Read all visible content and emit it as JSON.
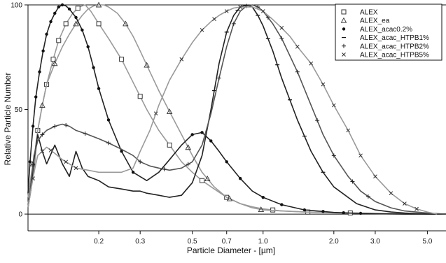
{
  "chart_data": {
    "type": "line",
    "title": "",
    "xlabel": "Particle Diameter - [µm]",
    "ylabel": "Relative Particle Number",
    "x_scale": "log",
    "xlim": [
      0.1,
      6.0
    ],
    "ylim": [
      -8,
      100
    ],
    "grid": false,
    "legend_position": "top-right",
    "x_ticks": [
      {
        "value": 0.2,
        "label": "0.2"
      },
      {
        "value": 0.3,
        "label": "0.3"
      },
      {
        "value": 0.5,
        "label": "0.5"
      },
      {
        "value": 0.7,
        "label": "0.7"
      },
      {
        "value": 1.0,
        "label": "1.0"
      },
      {
        "value": 2.0,
        "label": "2.0"
      },
      {
        "value": 3.0,
        "label": "3.0"
      },
      {
        "value": 5.0,
        "label": "5.0"
      }
    ],
    "y_ticks": [
      {
        "value": 0,
        "label": "0"
      },
      {
        "value": 50,
        "label": "50"
      },
      {
        "value": 100,
        "label": "100"
      }
    ],
    "series": [
      {
        "name": "ALEX",
        "marker": "square",
        "color": "#9a9a9a",
        "x": [
          0.1,
          0.103,
          0.107,
          0.11,
          0.115,
          0.12,
          0.128,
          0.135,
          0.145,
          0.155,
          0.165,
          0.175,
          0.185,
          0.2,
          0.22,
          0.25,
          0.28,
          0.32,
          0.36,
          0.4,
          0.45,
          0.5,
          0.55,
          0.62,
          0.7,
          0.8,
          0.9,
          1.0,
          1.2,
          1.5,
          2.0,
          2.5,
          3.0,
          3.5,
          4.0,
          5.0,
          6.0
        ],
        "y": [
          5,
          12,
          25,
          40,
          52,
          62,
          74,
          83,
          91,
          96,
          99,
          100,
          97,
          91,
          84,
          74,
          63,
          50,
          40,
          33,
          25,
          20,
          16,
          12,
          8,
          5,
          3.5,
          2.5,
          1.5,
          1,
          0.7,
          0.5,
          0.3,
          0.2,
          0.1,
          0,
          0
        ],
        "marker_x": [
          0.11,
          0.12,
          0.128,
          0.135,
          0.145,
          0.163,
          0.2,
          0.25,
          0.3,
          0.4,
          0.55,
          0.7,
          1.1,
          1.55,
          2.35
        ]
      },
      {
        "name": "ALEX_ea",
        "marker": "triangle",
        "color": "#9a9a9a",
        "x": [
          0.1,
          0.103,
          0.107,
          0.11,
          0.115,
          0.12,
          0.13,
          0.14,
          0.15,
          0.16,
          0.17,
          0.18,
          0.19,
          0.2,
          0.21,
          0.22,
          0.24,
          0.26,
          0.28,
          0.3,
          0.33,
          0.36,
          0.4,
          0.45,
          0.5,
          0.55,
          0.62,
          0.7,
          0.8,
          0.9,
          1.0,
          1.2,
          1.5,
          2.0,
          2.5,
          3.0,
          3.5,
          4.0,
          5.0,
          6.0
        ],
        "y": [
          8,
          18,
          30,
          40,
          52,
          62,
          72,
          80,
          86,
          91,
          95,
          98,
          99.5,
          100,
          100,
          99,
          96,
          91,
          85,
          78,
          68,
          59,
          49,
          38,
          28,
          20,
          13,
          8,
          5,
          3,
          2,
          1.5,
          1,
          0.6,
          0.4,
          0.3,
          0.2,
          0.1,
          0,
          0
        ],
        "marker_x": [
          0.105,
          0.115,
          0.13,
          0.16,
          0.2,
          0.26,
          0.32,
          0.4,
          0.48,
          0.58,
          0.72,
          0.98
        ]
      },
      {
        "name": "ALEX_acac0.2%",
        "marker": "circle",
        "color": "#222222",
        "x": [
          0.1,
          0.102,
          0.105,
          0.108,
          0.112,
          0.116,
          0.12,
          0.125,
          0.13,
          0.135,
          0.14,
          0.145,
          0.15,
          0.16,
          0.17,
          0.18,
          0.19,
          0.2,
          0.22,
          0.25,
          0.28,
          0.32,
          0.36,
          0.4,
          0.45,
          0.5,
          0.55,
          0.6,
          0.65,
          0.7,
          0.8,
          0.9,
          1.0,
          1.2,
          1.5,
          2.0,
          2.5,
          3.0,
          3.5,
          4.0,
          5.0,
          6.0
        ],
        "y": [
          10,
          25,
          42,
          56,
          68,
          78,
          86,
          92,
          96,
          99,
          100,
          99.5,
          98,
          94,
          88,
          80,
          70,
          60,
          45,
          30,
          20,
          16,
          20,
          26,
          33,
          38,
          39,
          35,
          30,
          25,
          17,
          11,
          8,
          4.5,
          2,
          0.8,
          0.4,
          0.2,
          0.1,
          0,
          0,
          0
        ],
        "marker_x": [
          0.102,
          0.105,
          0.108,
          0.112,
          0.116,
          0.12,
          0.125,
          0.13,
          0.135,
          0.14,
          0.15,
          0.16,
          0.17,
          0.18,
          0.19,
          0.2,
          0.22,
          0.25,
          0.28,
          0.5,
          0.55,
          0.6,
          0.7,
          0.8,
          1.0,
          1.2,
          1.5,
          1.8,
          2.2,
          2.6
        ]
      },
      {
        "name": "ALEX_acac_HTPB1%",
        "marker": "dash",
        "color": "#222222",
        "x": [
          0.1,
          0.103,
          0.106,
          0.11,
          0.115,
          0.12,
          0.13,
          0.14,
          0.15,
          0.16,
          0.17,
          0.18,
          0.2,
          0.22,
          0.25,
          0.28,
          0.3,
          0.32,
          0.34,
          0.36,
          0.4,
          0.45,
          0.5,
          0.55,
          0.6,
          0.65,
          0.7,
          0.75,
          0.8,
          0.85,
          0.9,
          0.95,
          1.0,
          1.1,
          1.2,
          1.4,
          1.6,
          1.8,
          2.0,
          2.5,
          3.0,
          3.5,
          4.0,
          5.0,
          6.0
        ],
        "y": [
          3,
          12,
          26,
          38,
          30,
          24,
          33,
          24,
          18,
          30,
          22,
          18,
          16,
          13,
          12,
          11,
          11,
          10,
          9.5,
          9,
          8,
          9,
          15,
          28,
          50,
          72,
          87,
          95,
          99,
          100,
          99,
          95,
          90,
          78,
          65,
          45,
          30,
          20,
          13,
          5,
          2,
          1,
          0.5,
          0,
          0
        ],
        "marker_x": [
          0.62,
          0.7,
          0.78,
          0.87,
          0.95,
          1.05,
          1.15,
          1.3,
          1.5,
          1.8
        ]
      },
      {
        "name": "ALEX_acac_HTPB2%",
        "marker": "plus",
        "color": "#555555",
        "x": [
          0.1,
          0.103,
          0.106,
          0.11,
          0.115,
          0.12,
          0.13,
          0.14,
          0.15,
          0.16,
          0.18,
          0.2,
          0.22,
          0.25,
          0.28,
          0.3,
          0.33,
          0.36,
          0.4,
          0.45,
          0.5,
          0.55,
          0.6,
          0.65,
          0.7,
          0.75,
          0.8,
          0.85,
          0.9,
          0.95,
          1.0,
          1.1,
          1.2,
          1.4,
          1.6,
          1.8,
          2.0,
          2.3,
          2.6,
          3.0,
          3.5,
          4.0,
          5.0,
          6.0
        ],
        "y": [
          3,
          15,
          28,
          35,
          38,
          40,
          42,
          43,
          42,
          40,
          38,
          36,
          34,
          31,
          28,
          25,
          23,
          22,
          21,
          22,
          25,
          33,
          48,
          65,
          80,
          91,
          97,
          99.5,
          100,
          99,
          97,
          91,
          84,
          68,
          52,
          38,
          28,
          18,
          11,
          6,
          3,
          1.5,
          0.5,
          0
        ],
        "marker_x": [
          0.105,
          0.115,
          0.13,
          0.145,
          0.175,
          0.22,
          0.3,
          0.38,
          0.48,
          0.65,
          0.75,
          0.85,
          0.95,
          1.05,
          1.2,
          1.4,
          1.7,
          2.0,
          2.4,
          2.8
        ]
      },
      {
        "name": "ALEX_acac_HTPB5%",
        "marker": "x",
        "color": "#9a9a9a",
        "x": [
          0.1,
          0.103,
          0.107,
          0.11,
          0.115,
          0.12,
          0.13,
          0.14,
          0.15,
          0.16,
          0.18,
          0.2,
          0.22,
          0.25,
          0.28,
          0.3,
          0.33,
          0.36,
          0.4,
          0.45,
          0.5,
          0.55,
          0.6,
          0.65,
          0.7,
          0.75,
          0.8,
          0.9,
          1.0,
          1.1,
          1.2,
          1.3,
          1.4,
          1.6,
          1.8,
          2.0,
          2.3,
          2.6,
          3.0,
          3.5,
          4.0,
          4.5,
          5.0,
          5.5
        ],
        "y": [
          3,
          12,
          22,
          28,
          30,
          32,
          29,
          26,
          24,
          22,
          21,
          20,
          20,
          20,
          22,
          30,
          40,
          52,
          64,
          74,
          82,
          88,
          92,
          95,
          97,
          98.5,
          99,
          99,
          97,
          93,
          89,
          85,
          80,
          72,
          62,
          52,
          40,
          28,
          18,
          10,
          5,
          2.5,
          1,
          0
        ],
        "marker_x": [
          0.105,
          0.115,
          0.125,
          0.145,
          0.16,
          0.35,
          0.45,
          0.55,
          0.62,
          0.7,
          0.8,
          1.0,
          1.2,
          1.4,
          1.6,
          1.8,
          2.0,
          2.3,
          2.6,
          3.0,
          3.5,
          4.0,
          4.5
        ]
      }
    ]
  }
}
